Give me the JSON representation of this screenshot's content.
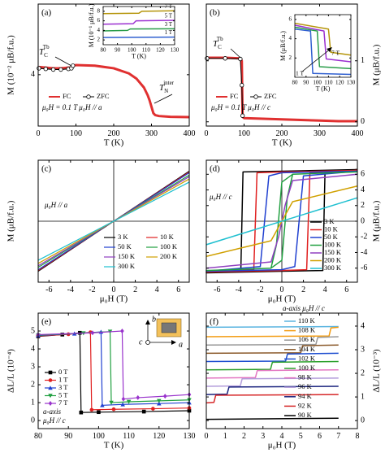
{
  "chart_data": [
    {
      "type": "line",
      "panel_label": "(a)",
      "x_label": "T (K)",
      "y_label": "M (10⁻² μB/f.u.)",
      "y_side": "left",
      "xlim": [
        0,
        400
      ],
      "ylim": [
        0,
        9.5
      ],
      "xticks": [
        0,
        100,
        200,
        300,
        400
      ],
      "yticks": [
        4
      ],
      "series": [
        {
          "name": "FC",
          "color": "#e03030",
          "line_width": 3,
          "x": [
            2,
            20,
            40,
            60,
            80,
            88,
            92,
            100,
            150,
            200,
            240,
            260,
            280,
            290,
            295,
            300,
            305,
            310,
            320,
            350,
            400
          ],
          "values": [
            4.6,
            4.55,
            4.5,
            4.5,
            4.55,
            4.55,
            4.7,
            4.75,
            4.7,
            4.5,
            4.1,
            3.7,
            3.0,
            2.4,
            2.0,
            1.5,
            1.0,
            0.85,
            0.78,
            0.72,
            0.7
          ]
        },
        {
          "name": "ZFC",
          "color": "#000000",
          "line_width": 1,
          "marker": "circle-open",
          "x": [
            2,
            20,
            40,
            60,
            80,
            88,
            92
          ],
          "values": [
            4.5,
            4.45,
            4.4,
            4.4,
            4.45,
            4.5,
            4.7
          ]
        }
      ],
      "conditions": [
        "μ₀H = 0.1 T  μ₀H // a"
      ],
      "annotations": [
        {
          "text": "T",
          "sub": "C",
          "sup": "Tb"
        },
        {
          "text": "T",
          "sub": "N",
          "sup": "inter"
        }
      ],
      "inset": {
        "x_label": "T (K)",
        "y_label": "M (10⁻¹ μB/f.u.)",
        "y_side": "left",
        "xlim": [
          80,
          130
        ],
        "ylim": [
          1,
          9
        ],
        "xticks": [
          80,
          90,
          100,
          110,
          120,
          130
        ],
        "yticks": [
          2,
          4,
          6,
          8
        ],
        "label_lines": true,
        "series": [
          {
            "name": "7 T",
            "color": "#b5950b",
            "line_width": 1.5,
            "x": [
              80,
              105,
              107,
              130
            ],
            "values": [
              7.5,
              7.6,
              8.0,
              8.1
            ]
          },
          {
            "name": "5 T",
            "color": "#9b30d0",
            "line_width": 1.5,
            "x": [
              80,
              101,
              103,
              130
            ],
            "values": [
              5.3,
              5.4,
              6.0,
              6.1
            ]
          },
          {
            "name": "3 T",
            "color": "#2a9d4a",
            "line_width": 1.5,
            "x": [
              80,
              97,
              99,
              130
            ],
            "values": [
              3.9,
              4.0,
              4.3,
              4.35
            ]
          },
          {
            "name": "1 T",
            "color": "#3060d0",
            "line_width": 1.5,
            "x": [
              80,
              130
            ],
            "values": [
              2.5,
              2.6
            ]
          }
        ]
      }
    },
    {
      "type": "line",
      "panel_label": "(b)",
      "x_label": "T (K)",
      "y_label": "M (μB/f.u.)",
      "y_side": "right",
      "xlim": [
        0,
        400
      ],
      "ylim": [
        -0.07,
        1.93
      ],
      "xticks": [
        0,
        100,
        200,
        300,
        400
      ],
      "yticks": [
        0,
        1
      ],
      "series": [
        {
          "name": "FC",
          "color": "#e03030",
          "line_width": 3,
          "x": [
            2,
            50,
            90,
            94,
            96,
            100,
            150,
            200,
            250,
            300,
            350,
            400
          ],
          "values": [
            1.05,
            1.05,
            1.04,
            1.0,
            0.08,
            0.06,
            0.05,
            0.04,
            0.03,
            0.02,
            0.01,
            0.01
          ]
        },
        {
          "name": "ZFC",
          "color": "#000000",
          "line_width": 1,
          "marker": "circle-open",
          "x": [
            2,
            50,
            90,
            94,
            96
          ],
          "values": [
            1.04,
            1.04,
            1.03,
            0.6,
            0.1
          ]
        }
      ],
      "conditions": [
        "μ₀H = 0.1 T  μ₀H // c"
      ],
      "annotations": [
        {
          "text": "T",
          "sub": "C",
          "sup": "Tb"
        }
      ],
      "inset": {
        "x_label": "T (K)",
        "y_label": "M (μB/f.u.)",
        "y_side": "left",
        "xlim": [
          80,
          130
        ],
        "ylim": [
          0,
          6.5
        ],
        "xticks": [
          80,
          90,
          100,
          110,
          120,
          130
        ],
        "yticks": [
          2,
          4,
          6
        ],
        "annotations": [
          "7 T",
          "1 T"
        ],
        "series": [
          {
            "color": "#b5950b",
            "line_width": 1.5,
            "x": [
              80,
              110,
              112,
              130
            ],
            "values": [
              5.6,
              5.0,
              2.6,
              2.3
            ]
          },
          {
            "color": "#9b30d0",
            "line_width": 1.5,
            "x": [
              80,
              106,
              108,
              130
            ],
            "values": [
              5.4,
              4.8,
              1.9,
              1.6
            ]
          },
          {
            "color": "#2a9d4a",
            "line_width": 1.5,
            "x": [
              80,
              100,
              102,
              130
            ],
            "values": [
              5.2,
              4.8,
              1.1,
              0.9
            ]
          },
          {
            "color": "#3060d0",
            "line_width": 1.5,
            "x": [
              80,
              94,
              96,
              130
            ],
            "values": [
              5.0,
              4.8,
              0.4,
              0.3
            ]
          }
        ]
      }
    },
    {
      "type": "line",
      "panel_label": "(c)",
      "x_label": "μ₀H (T)",
      "y_label": "M (μB/f.u.)",
      "y_side": "left",
      "xlim": [
        -7,
        7
      ],
      "ylim": [
        -7.8,
        7.8
      ],
      "xticks": [
        -6,
        -4,
        -2,
        0,
        2,
        4,
        6
      ],
      "zero_lines": true,
      "conditions": [
        "μ₀H // a"
      ],
      "series": [
        {
          "name": "3 K",
          "color": "#000000",
          "line_width": 1.2,
          "x": [
            -7,
            7
          ],
          "values": [
            -6.4,
            6.4
          ]
        },
        {
          "name": "10 K",
          "color": "#e02020",
          "line_width": 1.2,
          "x": [
            -7,
            7
          ],
          "values": [
            -6.3,
            6.3
          ]
        },
        {
          "name": "50 K",
          "color": "#2040d0",
          "line_width": 1.2,
          "x": [
            -7,
            7
          ],
          "values": [
            -6.2,
            6.2
          ]
        },
        {
          "name": "100 K",
          "color": "#20a040",
          "line_width": 1.2,
          "x": [
            -7,
            7
          ],
          "values": [
            -5.9,
            5.9
          ]
        },
        {
          "name": "150 K",
          "color": "#9040c0",
          "line_width": 1.2,
          "x": [
            -7,
            7
          ],
          "values": [
            -5.7,
            5.7
          ]
        },
        {
          "name": "200 K",
          "color": "#d0a000",
          "line_width": 1.2,
          "x": [
            -7,
            7
          ],
          "values": [
            -5.4,
            5.4
          ]
        },
        {
          "name": "300 K",
          "color": "#20c0d0",
          "line_width": 1.2,
          "x": [
            -7,
            7
          ],
          "values": [
            -5.0,
            5.0
          ]
        }
      ]
    },
    {
      "type": "line",
      "panel_label": "(d)",
      "x_label": "μ₀H (T)",
      "y_label": "M (μB/f.u.)",
      "y_side": "right",
      "xlim": [
        -7,
        7
      ],
      "ylim": [
        -7.8,
        7.8
      ],
      "xticks": [
        -6,
        -4,
        -2,
        0,
        2,
        4,
        6
      ],
      "yticks": [
        -6,
        -4,
        -2,
        0,
        2,
        4,
        6
      ],
      "zero_lines": true,
      "conditions": [
        "μ₀H // c"
      ],
      "series": [
        {
          "name": "3 K",
          "color": "#000000",
          "line_width": 1.5,
          "x": [
            7,
            0,
            -3.6,
            -3.8,
            -7,
            0,
            3.8,
            4.0,
            7
          ],
          "values": [
            6.6,
            6.4,
            6.3,
            -6.3,
            -6.6,
            -6.4,
            -6.3,
            6.3,
            6.6
          ]
        },
        {
          "name": "10 K",
          "color": "#e02020",
          "line_width": 1.5,
          "x": [
            7,
            0,
            -2.3,
            -2.6,
            -7,
            0,
            2.3,
            2.6,
            7
          ],
          "values": [
            6.5,
            6.3,
            6.2,
            -6.2,
            -6.5,
            -6.3,
            -6.2,
            6.2,
            6.5
          ]
        },
        {
          "name": "50 K",
          "color": "#2040d0",
          "line_width": 1.5,
          "x": [
            7,
            0,
            -1.2,
            -2.0,
            -7,
            0,
            1.2,
            2.0,
            7
          ],
          "values": [
            6.4,
            6.2,
            5.8,
            -5.8,
            -6.4,
            -6.2,
            -5.8,
            5.8,
            6.4
          ]
        },
        {
          "name": "100 K",
          "color": "#20a040",
          "line_width": 1.5,
          "x": [
            7,
            1,
            0,
            -0.5,
            -1,
            -7,
            -1,
            0,
            0.5,
            1,
            7
          ],
          "values": [
            6.3,
            6.0,
            5.0,
            -3.0,
            -6.0,
            -6.3,
            -6.0,
            -5.0,
            3.0,
            6.0,
            6.3
          ]
        },
        {
          "name": "150 K",
          "color": "#9040c0",
          "line_width": 1.5,
          "x": [
            -7,
            -1,
            -0.3,
            0.3,
            1,
            7
          ],
          "values": [
            -6.0,
            -5.2,
            -2.0,
            2.0,
            5.2,
            6.0
          ]
        },
        {
          "name": "200 K",
          "color": "#d0a000",
          "line_width": 1.5,
          "x": [
            -7,
            -1,
            1,
            7
          ],
          "values": [
            -4.5,
            -2.5,
            2.5,
            4.5
          ]
        },
        {
          "name": "300 K",
          "color": "#20c0d0",
          "line_width": 1.5,
          "x": [
            -7,
            7
          ],
          "values": [
            -3.0,
            3.0
          ]
        }
      ]
    },
    {
      "type": "line",
      "panel_label": "(e)",
      "x_label": "T (K)",
      "y_label": "ΔL/L (10⁻⁴)",
      "y_side": "left",
      "xlim": [
        80,
        130
      ],
      "ylim": [
        -0.45,
        6.0
      ],
      "xticks": [
        80,
        90,
        100,
        110,
        120,
        130
      ],
      "yticks": [
        0,
        1,
        2,
        3,
        4,
        5
      ],
      "conditions": [
        "a-axis",
        "μ₀H // c"
      ],
      "icon_labels": [
        "b",
        "c",
        "a"
      ],
      "series": [
        {
          "name": "0 T",
          "color": "#000000",
          "line_width": 1.2,
          "marker": "square",
          "x": [
            80,
            88,
            93.8,
            94.2,
            100,
            115,
            130
          ],
          "values": [
            4.7,
            4.8,
            4.9,
            0.45,
            0.47,
            0.5,
            0.55
          ]
        },
        {
          "name": "1 T",
          "color": "#e02020",
          "line_width": 1.2,
          "marker": "circle",
          "x": [
            80,
            90,
            97.3,
            97.7,
            105,
            118,
            130
          ],
          "values": [
            4.72,
            4.82,
            4.93,
            0.6,
            0.63,
            0.66,
            0.7
          ]
        },
        {
          "name": "3 T",
          "color": "#2040d0",
          "line_width": 1.2,
          "marker": "triangle",
          "x": [
            80,
            92,
            100.8,
            101.2,
            108,
            120,
            130
          ],
          "values": [
            4.75,
            4.85,
            4.95,
            0.85,
            0.9,
            0.95,
            1.0
          ]
        },
        {
          "name": "5 T",
          "color": "#20a040",
          "line_width": 1.2,
          "marker": "triangle-down",
          "x": [
            80,
            95,
            103.8,
            104.2,
            110,
            120,
            130
          ],
          "values": [
            4.77,
            4.88,
            4.97,
            1.0,
            1.05,
            1.1,
            1.15
          ]
        },
        {
          "name": "7 T",
          "color": "#9933cc",
          "line_width": 1.2,
          "marker": "diamond",
          "x": [
            80,
            98,
            107.8,
            108.2,
            113,
            122,
            130
          ],
          "values": [
            4.8,
            4.9,
            5.0,
            1.2,
            1.28,
            1.36,
            1.45
          ]
        }
      ]
    },
    {
      "type": "line",
      "panel_label": "(f)",
      "x_label": "μ₀H (T)",
      "y_label": "ΔL/L (10⁻³)",
      "y_side": "right",
      "xlim": [
        0,
        8
      ],
      "ylim": [
        -0.34,
        4.55
      ],
      "xticks": [
        0,
        1,
        2,
        3,
        4,
        5,
        6,
        7,
        8
      ],
      "yticks": [
        0,
        1,
        2,
        3,
        4
      ],
      "conditions": [
        "a-axis μ₀H // c"
      ],
      "series": [
        {
          "name": "110 K",
          "color": "#5ab4e0",
          "line_width": 1.5,
          "x": [
            0,
            7
          ],
          "values": [
            3.95,
            3.98
          ]
        },
        {
          "name": "108 K",
          "color": "#f39c12",
          "line_width": 1.5,
          "x": [
            0,
            6.5,
            6.6,
            7
          ],
          "values": [
            3.55,
            3.58,
            3.92,
            3.95
          ]
        },
        {
          "name": "106 K",
          "color": "#999999",
          "line_width": 1.5,
          "x": [
            0,
            5.8,
            5.9,
            7
          ],
          "values": [
            3.2,
            3.22,
            3.52,
            3.55
          ]
        },
        {
          "name": "104 K",
          "color": "#8b5a2b",
          "line_width": 1.5,
          "x": [
            0,
            5.0,
            5.1,
            7
          ],
          "values": [
            2.85,
            2.87,
            3.17,
            3.2
          ]
        },
        {
          "name": "102 K",
          "color": "#1f4fd0",
          "line_width": 1.5,
          "x": [
            0,
            4.2,
            4.3,
            7
          ],
          "values": [
            2.5,
            2.52,
            2.82,
            2.85
          ]
        },
        {
          "name": "100 K",
          "color": "#2ca02c",
          "line_width": 1.5,
          "x": [
            0,
            3.4,
            3.5,
            7
          ],
          "values": [
            2.15,
            2.17,
            2.47,
            2.5
          ]
        },
        {
          "name": "98 K",
          "color": "#e377c2",
          "line_width": 1.5,
          "x": [
            0,
            2.6,
            2.7,
            7
          ],
          "values": [
            1.8,
            1.82,
            2.12,
            2.15
          ]
        },
        {
          "name": "96 K",
          "color": "#b39ddb",
          "line_width": 1.5,
          "x": [
            0,
            1.8,
            1.9,
            7
          ],
          "values": [
            1.45,
            1.47,
            1.77,
            1.8
          ]
        },
        {
          "name": "94 K",
          "color": "#1a237e",
          "line_width": 1.5,
          "x": [
            0,
            1.1,
            1.2,
            7
          ],
          "values": [
            1.1,
            1.12,
            1.42,
            1.45
          ]
        },
        {
          "name": "92 K",
          "color": "#d62728",
          "line_width": 1.5,
          "x": [
            0,
            0.4,
            0.5,
            7
          ],
          "values": [
            0.75,
            0.77,
            1.07,
            1.1
          ]
        },
        {
          "name": "90 K",
          "color": "#000000",
          "line_width": 1.5,
          "x": [
            0,
            7
          ],
          "values": [
            0.05,
            0.1
          ]
        }
      ]
    }
  ]
}
